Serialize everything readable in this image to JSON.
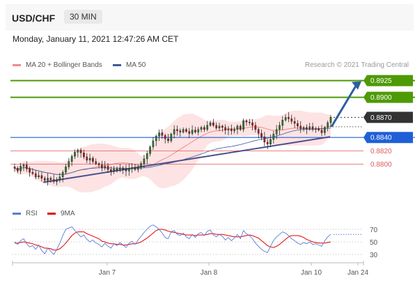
{
  "header": {
    "symbol": "USD/CHF",
    "timeframe": "30 MIN",
    "datetime": "Monday, January 11, 2021 12:47:26 AM CET"
  },
  "legend": {
    "ma20_label": "MA 20 + Bollinger Bands",
    "ma50_label": "MA 50",
    "credit": "Research © 2021 Trading Central",
    "rsi_label": "RSI",
    "nine_ma_label": "9MA"
  },
  "colors": {
    "resistance": "#4e9a06",
    "current": "#333333",
    "pivot": "#1f5fd6",
    "support": "#e05a5a",
    "arrow": "#2e5f9e",
    "trendline": "#4a4f8c",
    "bollinger_fill": "#fde3e3",
    "ma20": "#f08a8a",
    "ma50": "#3d5c99",
    "rsi": "#5b7bd6",
    "rsi_ma": "#e00000"
  },
  "chart_data": [
    {
      "type": "candlestick",
      "title": "USD/CHF 30 MIN",
      "x_axis_labels": [
        "Jan 7",
        "Jan 8",
        "Jan 10",
        "Jan 24"
      ],
      "ylim": [
        0.876,
        0.8935
      ],
      "levels": [
        {
          "value": 0.8925,
          "label": "0.8925",
          "kind": "resistance"
        },
        {
          "value": 0.89,
          "label": "0.8900",
          "kind": "resistance"
        },
        {
          "value": 0.887,
          "label": "0.8870",
          "kind": "current"
        },
        {
          "value": 0.884,
          "label": "0.8840",
          "kind": "pivot"
        },
        {
          "value": 0.882,
          "label": "0.8820",
          "kind": "support"
        },
        {
          "value": 0.88,
          "label": "0.8800",
          "kind": "support"
        }
      ],
      "closes": [
        0.8794,
        0.879,
        0.8797,
        0.8799,
        0.8793,
        0.8788,
        0.8786,
        0.8781,
        0.8783,
        0.8779,
        0.8776,
        0.8779,
        0.8777,
        0.8774,
        0.8776,
        0.8781,
        0.8788,
        0.8796,
        0.8804,
        0.8812,
        0.8818,
        0.8821,
        0.8817,
        0.8811,
        0.8806,
        0.8809,
        0.8804,
        0.8801,
        0.8799,
        0.8795,
        0.8797,
        0.8792,
        0.879,
        0.8793,
        0.8791,
        0.8794,
        0.8792,
        0.879,
        0.8793,
        0.8795,
        0.8792,
        0.8796,
        0.8801,
        0.8808,
        0.8816,
        0.8826,
        0.8835,
        0.8842,
        0.8847,
        0.8843,
        0.8838,
        0.8835,
        0.8845,
        0.8852,
        0.885,
        0.8848,
        0.8852,
        0.8849,
        0.8846,
        0.8851,
        0.8848,
        0.8852,
        0.8855,
        0.8852,
        0.8858,
        0.8862,
        0.8858,
        0.8854,
        0.8857,
        0.8855,
        0.8851,
        0.8853,
        0.885,
        0.8852,
        0.8857,
        0.8852,
        0.8865,
        0.8863,
        0.8862,
        0.8858,
        0.8852,
        0.8846,
        0.8841,
        0.8833,
        0.883,
        0.8837,
        0.8845,
        0.8852,
        0.8858,
        0.8866,
        0.887,
        0.8868,
        0.8864,
        0.8861,
        0.8857,
        0.8853,
        0.8855,
        0.8853,
        0.8856,
        0.8852,
        0.8853,
        0.8851,
        0.8847,
        0.8855,
        0.8862,
        0.887
      ]
    },
    {
      "type": "line",
      "title": "RSI",
      "ylim": [
        20,
        80
      ],
      "yticks": [
        70,
        50,
        30
      ],
      "series": [
        {
          "name": "RSI",
          "values": [
            50,
            46,
            52,
            55,
            47,
            42,
            44,
            38,
            45,
            36,
            31,
            40,
            35,
            30,
            38,
            48,
            60,
            70,
            72,
            74,
            68,
            63,
            58,
            61,
            54,
            50,
            53,
            48,
            46,
            42,
            48,
            43,
            40,
            47,
            44,
            49,
            45,
            41,
            48,
            51,
            46,
            53,
            59,
            65,
            70,
            75,
            77,
            74,
            70,
            64,
            57,
            55,
            66,
            68,
            62,
            60,
            64,
            58,
            55,
            62,
            57,
            63,
            65,
            60,
            67,
            69,
            61,
            58,
            62,
            59,
            53,
            57,
            52,
            56,
            62,
            55,
            68,
            63,
            60,
            55,
            48,
            43,
            38,
            35,
            33,
            43,
            52,
            58,
            62,
            66,
            64,
            60,
            55,
            52,
            48,
            46,
            49,
            47,
            50,
            46,
            47,
            45,
            43,
            52,
            58,
            62
          ]
        },
        {
          "name": "9MA",
          "values": [
            48,
            48,
            49,
            50,
            49,
            48,
            47,
            45,
            44,
            42,
            40,
            40,
            39,
            37,
            37,
            39,
            43,
            48,
            54,
            60,
            64,
            66,
            66,
            66,
            63,
            61,
            59,
            57,
            55,
            51,
            50,
            48,
            47,
            47,
            46,
            46,
            45,
            45,
            46,
            47,
            47,
            48,
            50,
            53,
            56,
            60,
            64,
            68,
            70,
            70,
            69,
            67,
            66,
            65,
            64,
            63,
            62,
            61,
            61,
            61,
            60,
            61,
            61,
            61,
            62,
            63,
            63,
            62,
            62,
            62,
            61,
            60,
            59,
            58,
            58,
            58,
            59,
            60,
            61,
            60,
            58,
            56,
            52,
            48,
            44,
            42,
            41,
            43,
            46,
            50,
            54,
            58,
            60,
            60,
            60,
            59,
            57,
            54,
            52,
            50,
            49,
            48,
            48,
            48,
            49,
            50
          ]
        }
      ]
    }
  ]
}
